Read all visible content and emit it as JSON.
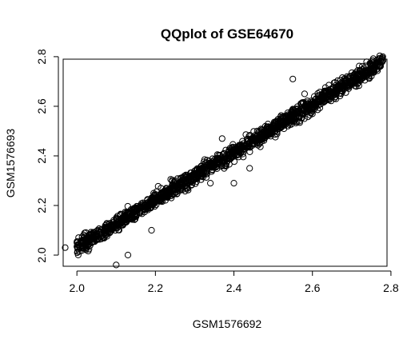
{
  "chart_data": {
    "type": "scatter",
    "title": "QQplot of GSE64670",
    "xlabel": "GSM1576692",
    "ylabel": "GSM1576693",
    "xlim": [
      1.965,
      2.79
    ],
    "ylim": [
      1.955,
      2.79
    ],
    "x_ticks": [
      "2.0",
      "2.2",
      "2.4",
      "2.6",
      "2.8"
    ],
    "y_ticks": [
      "2.0",
      "2.2",
      "2.4",
      "2.6",
      "2.8"
    ],
    "x_tick_values": [
      2.0,
      2.2,
      2.4,
      2.6,
      2.8
    ],
    "y_tick_values": [
      2.0,
      2.2,
      2.4,
      2.6,
      2.8
    ],
    "grid": false,
    "marker": "open-circle",
    "point_color": "#000000",
    "series_trend": {
      "x_range": [
        2.0,
        2.78
      ],
      "y_at_x_min": 2.03,
      "y_at_x_max": 2.78,
      "band_halfwidth_y": 0.03
    },
    "outliers": [
      {
        "x": 1.97,
        "y": 2.03
      },
      {
        "x": 2.03,
        "y": 2.08
      },
      {
        "x": 2.1,
        "y": 1.96
      },
      {
        "x": 2.13,
        "y": 2.0
      },
      {
        "x": 2.19,
        "y": 2.1
      },
      {
        "x": 2.25,
        "y": 2.3
      },
      {
        "x": 2.34,
        "y": 2.29
      },
      {
        "x": 2.37,
        "y": 2.47
      },
      {
        "x": 2.4,
        "y": 2.29
      },
      {
        "x": 2.44,
        "y": 2.35
      },
      {
        "x": 2.52,
        "y": 2.53
      },
      {
        "x": 2.55,
        "y": 2.71
      },
      {
        "x": 2.58,
        "y": 2.65
      },
      {
        "x": 2.66,
        "y": 2.63
      }
    ]
  }
}
